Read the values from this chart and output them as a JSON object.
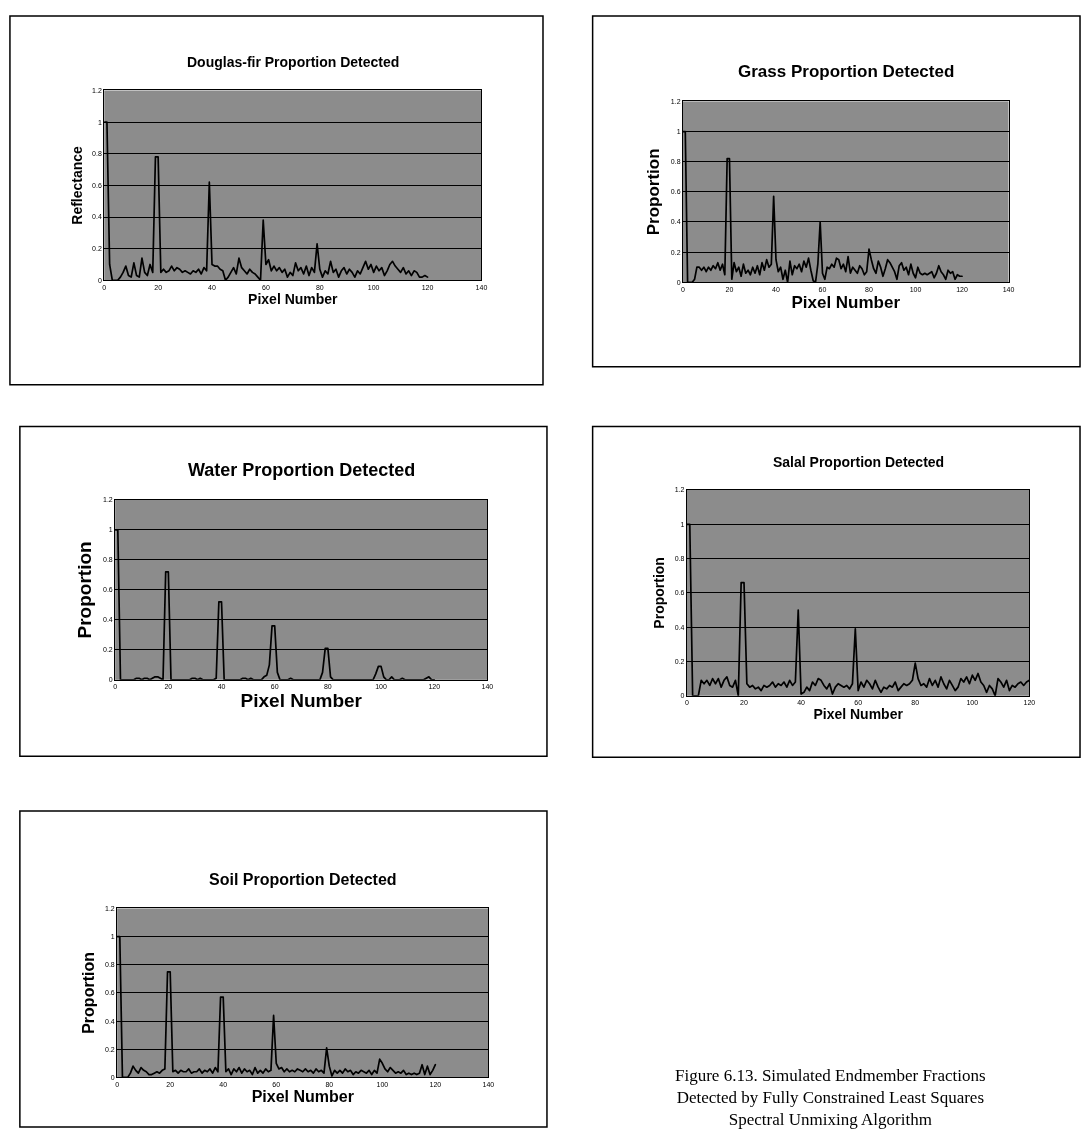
{
  "chart_data": [
    {
      "type": "line",
      "title": "Douglas-fir Proportion Detected",
      "xlabel": "Pixel Number",
      "ylabel": "Reflectance",
      "xlim": [
        0,
        140
      ],
      "xticks": [
        0,
        20,
        40,
        60,
        80,
        100,
        120,
        140
      ],
      "ylim": [
        0,
        1.2
      ],
      "yticks": [
        0,
        0.2,
        0.4,
        0.6,
        0.8,
        1,
        1.2
      ],
      "grid": "y",
      "x": [
        0,
        1,
        2,
        3,
        4,
        5,
        6,
        7,
        8,
        9,
        10,
        11,
        12,
        13,
        14,
        15,
        16,
        17,
        18,
        19,
        20,
        21,
        22,
        23,
        24,
        25,
        26,
        27,
        28,
        29,
        30,
        31,
        32,
        33,
        34,
        35,
        36,
        37,
        38,
        39,
        40,
        41,
        42,
        43,
        44,
        45,
        46,
        47,
        48,
        49,
        50,
        51,
        52,
        53,
        54,
        55,
        56,
        57,
        58,
        59,
        60,
        61,
        62,
        63,
        64,
        65,
        66,
        67,
        68,
        69,
        70,
        71,
        72,
        73,
        74,
        75,
        76,
        77,
        78,
        79,
        80,
        81,
        82,
        83,
        84,
        85,
        86,
        87,
        88,
        89,
        90,
        91,
        92,
        93,
        94,
        95,
        96,
        97,
        98,
        99,
        100,
        101,
        102,
        103,
        104,
        105,
        106,
        107,
        108,
        109,
        110,
        111,
        112,
        113,
        114,
        115,
        116,
        117,
        118,
        119,
        120
      ],
      "series": [
        {
          "color": "#000000",
          "values": [
            1,
            1,
            0.1,
            0,
            0,
            0,
            0.02,
            0.05,
            0.09,
            0.03,
            0.02,
            0.11,
            0.03,
            0.02,
            0.14,
            0.05,
            0.03,
            0.1,
            0.05,
            0.78,
            0.78,
            0.05,
            0.07,
            0.05,
            0.06,
            0.09,
            0.06,
            0.08,
            0.07,
            0.05,
            0.06,
            0.05,
            0.04,
            0.06,
            0.05,
            0.07,
            0.04,
            0.08,
            0.06,
            0.62,
            0.1,
            0.09,
            0.09,
            0.07,
            0.06,
            0,
            0.02,
            0.05,
            0.08,
            0.04,
            0.14,
            0.08,
            0.06,
            0.04,
            0.07,
            0.05,
            0.04,
            0.02,
            0,
            0.38,
            0.1,
            0.13,
            0.06,
            0.09,
            0.06,
            0.08,
            0.05,
            0.07,
            0.02,
            0.05,
            0.03,
            0.11,
            0.06,
            0.08,
            0.04,
            0.09,
            0.03,
            0.08,
            0.05,
            0.23,
            0.07,
            0.02,
            0.06,
            0.04,
            0.12,
            0.05,
            0.07,
            0.02,
            0.06,
            0.08,
            0.04,
            0.07,
            0.05,
            0.02,
            0.06,
            0.04,
            0.08,
            0.12,
            0.07,
            0.1,
            0.05,
            0.09,
            0.06,
            0.08,
            0.03,
            0.06,
            0.1,
            0.12,
            0.09,
            0.07,
            0.05,
            0.08,
            0.04,
            0.06,
            0.03,
            0.06,
            0.05,
            0.02,
            0.02,
            0.03,
            0.02
          ]
        }
      ]
    },
    {
      "type": "line",
      "title": "Grass Proportion Detected",
      "xlabel": "Pixel Number",
      "ylabel": "Proportion",
      "xlim": [
        0,
        140
      ],
      "xticks": [
        0,
        20,
        40,
        60,
        80,
        100,
        120,
        140
      ],
      "ylim": [
        0,
        1.2
      ],
      "yticks": [
        0,
        0.2,
        0.4,
        0.6,
        0.8,
        1,
        1.2
      ],
      "grid": "y",
      "x": [
        0,
        1,
        2,
        3,
        4,
        5,
        6,
        7,
        8,
        9,
        10,
        11,
        12,
        13,
        14,
        15,
        16,
        17,
        18,
        19,
        20,
        21,
        22,
        23,
        24,
        25,
        26,
        27,
        28,
        29,
        30,
        31,
        32,
        33,
        34,
        35,
        36,
        37,
        38,
        39,
        40,
        41,
        42,
        43,
        44,
        45,
        46,
        47,
        48,
        49,
        50,
        51,
        52,
        53,
        54,
        55,
        56,
        57,
        58,
        59,
        60,
        61,
        62,
        63,
        64,
        65,
        66,
        67,
        68,
        69,
        70,
        71,
        72,
        73,
        74,
        75,
        76,
        77,
        78,
        79,
        80,
        81,
        82,
        83,
        84,
        85,
        86,
        87,
        88,
        89,
        90,
        91,
        92,
        93,
        94,
        95,
        96,
        97,
        98,
        99,
        100,
        101,
        102,
        103,
        104,
        105,
        106,
        107,
        108,
        109,
        110,
        111,
        112,
        113,
        114,
        115,
        116,
        117,
        118,
        119,
        120
      ],
      "series": [
        {
          "color": "#000000",
          "values": [
            1,
            1,
            0,
            0,
            0,
            0.02,
            0.1,
            0.1,
            0.08,
            0.1,
            0.07,
            0.1,
            0.08,
            0.11,
            0.09,
            0.13,
            0.08,
            0.12,
            0.05,
            0.82,
            0.82,
            0.02,
            0.13,
            0.07,
            0.1,
            0.04,
            0.12,
            0.06,
            0.08,
            0.05,
            0.1,
            0.06,
            0.11,
            0.05,
            0.13,
            0.08,
            0.15,
            0.1,
            0.12,
            0.57,
            0.15,
            0.07,
            0.1,
            0.02,
            0.08,
            0,
            0.14,
            0.05,
            0.11,
            0.09,
            0.12,
            0.07,
            0.14,
            0.1,
            0.16,
            0.08,
            0.01,
            0,
            0.12,
            0.4,
            0.06,
            0.02,
            0.1,
            0.09,
            0.12,
            0.1,
            0.16,
            0.15,
            0.09,
            0.12,
            0.07,
            0.17,
            0.06,
            0.1,
            0.08,
            0.06,
            0.11,
            0.09,
            0.05,
            0.07,
            0.22,
            0.15,
            0.09,
            0.06,
            0.14,
            0.1,
            0.04,
            0.09,
            0.15,
            0.13,
            0.1,
            0.07,
            0.02,
            0.11,
            0.13,
            0.08,
            0.1,
            0.05,
            0.12,
            0.06,
            0.03,
            0.1,
            0.06,
            0.05,
            0.06,
            0.05,
            0.06,
            0.07,
            0.03,
            0.06,
            0.11,
            0.07,
            0.05,
            0.02,
            0.08,
            0.06,
            0.07,
            0.02,
            0.05,
            0.04,
            0.04
          ]
        }
      ]
    },
    {
      "type": "line",
      "title": "Water Proportion Detected",
      "xlabel": "Pixel Number",
      "ylabel": "Proportion",
      "xlim": [
        0,
        140
      ],
      "xticks": [
        0,
        20,
        40,
        60,
        80,
        100,
        120,
        140
      ],
      "ylim": [
        0,
        1.2
      ],
      "yticks": [
        0,
        0.2,
        0.4,
        0.6,
        0.8,
        1,
        1.2
      ],
      "grid": "y",
      "x": [
        0,
        1,
        2,
        3,
        4,
        5,
        6,
        7,
        8,
        9,
        10,
        11,
        12,
        13,
        14,
        15,
        16,
        17,
        18,
        19,
        20,
        21,
        22,
        23,
        24,
        25,
        26,
        27,
        28,
        29,
        30,
        31,
        32,
        33,
        34,
        35,
        36,
        37,
        38,
        39,
        40,
        41,
        42,
        43,
        44,
        45,
        46,
        47,
        48,
        49,
        50,
        51,
        52,
        53,
        54,
        55,
        56,
        57,
        58,
        59,
        60,
        61,
        62,
        63,
        64,
        65,
        66,
        67,
        68,
        69,
        70,
        71,
        72,
        73,
        74,
        75,
        76,
        77,
        78,
        79,
        80,
        81,
        82,
        83,
        84,
        85,
        86,
        87,
        88,
        89,
        90,
        91,
        92,
        93,
        94,
        95,
        96,
        97,
        98,
        99,
        100,
        101,
        102,
        103,
        104,
        105,
        106,
        107,
        108,
        109,
        110,
        111,
        112,
        113,
        114,
        115,
        116,
        117,
        118,
        119,
        120
      ],
      "series": [
        {
          "color": "#000000",
          "values": [
            1,
            1,
            0,
            0,
            0,
            0,
            0,
            0,
            0.01,
            0.01,
            0,
            0.01,
            0.01,
            0,
            0.01,
            0.02,
            0.02,
            0.01,
            0,
            0.72,
            0.72,
            0,
            0,
            0,
            0,
            0,
            0,
            0,
            0,
            0.01,
            0.01,
            0,
            0.01,
            0,
            0,
            0,
            0,
            0,
            0.01,
            0.52,
            0.52,
            0,
            0,
            0,
            0,
            0,
            0,
            0,
            0.01,
            0.01,
            0,
            0.01,
            0,
            0,
            0,
            0,
            0.02,
            0.03,
            0.1,
            0.36,
            0.36,
            0.05,
            0,
            0,
            0,
            0,
            0.01,
            0,
            0,
            0,
            0,
            0,
            0,
            0,
            0,
            0,
            0,
            0,
            0.05,
            0.21,
            0.21,
            0.02,
            0,
            0,
            0,
            0,
            0,
            0,
            0,
            0,
            0,
            0,
            0,
            0,
            0,
            0,
            0,
            0,
            0.04,
            0.09,
            0.09,
            0.02,
            0,
            0,
            0.02,
            0,
            0,
            0,
            0.01,
            0,
            0,
            0,
            0,
            0,
            0,
            0,
            0,
            0.01,
            0.02,
            0,
            0
          ]
        }
      ]
    },
    {
      "type": "line",
      "title": "Salal Proportion Detected",
      "xlabel": "Pixel Number",
      "ylabel": "Proportion",
      "xlim": [
        0,
        120
      ],
      "xticks": [
        0,
        20,
        40,
        60,
        80,
        100,
        120
      ],
      "ylim": [
        0,
        1.2
      ],
      "yticks": [
        0,
        0.2,
        0.4,
        0.6,
        0.8,
        1,
        1.2
      ],
      "grid": "y",
      "x": [
        0,
        1,
        2,
        3,
        4,
        5,
        6,
        7,
        8,
        9,
        10,
        11,
        12,
        13,
        14,
        15,
        16,
        17,
        18,
        19,
        20,
        21,
        22,
        23,
        24,
        25,
        26,
        27,
        28,
        29,
        30,
        31,
        32,
        33,
        34,
        35,
        36,
        37,
        38,
        39,
        40,
        41,
        42,
        43,
        44,
        45,
        46,
        47,
        48,
        49,
        50,
        51,
        52,
        53,
        54,
        55,
        56,
        57,
        58,
        59,
        60,
        61,
        62,
        63,
        64,
        65,
        66,
        67,
        68,
        69,
        70,
        71,
        72,
        73,
        74,
        75,
        76,
        77,
        78,
        79,
        80,
        81,
        82,
        83,
        84,
        85,
        86,
        87,
        88,
        89,
        90,
        91,
        92,
        93,
        94,
        95,
        96,
        97,
        98,
        99,
        100,
        101,
        102,
        103,
        104,
        105,
        106,
        107,
        108,
        109,
        110,
        111,
        112,
        113,
        114,
        115,
        116,
        117,
        118,
        119,
        120
      ],
      "series": [
        {
          "color": "#000000",
          "values": [
            1,
            1,
            0,
            0,
            0,
            0.09,
            0.07,
            0.09,
            0.06,
            0.1,
            0.07,
            0.1,
            0.05,
            0.09,
            0.11,
            0.06,
            0.05,
            0.09,
            0,
            0.66,
            0.66,
            0.07,
            0.05,
            0.06,
            0.04,
            0.05,
            0.03,
            0.06,
            0.05,
            0.06,
            0.08,
            0.05,
            0.07,
            0.06,
            0.08,
            0.05,
            0.09,
            0.06,
            0.08,
            0.5,
            0.01,
            0.02,
            0.05,
            0.03,
            0.08,
            0.06,
            0.1,
            0.09,
            0.06,
            0.04,
            0.07,
            0.01,
            0.05,
            0.07,
            0.06,
            0.05,
            0.06,
            0.04,
            0.07,
            0.39,
            0.03,
            0.08,
            0.05,
            0.09,
            0.07,
            0.04,
            0.09,
            0.05,
            0.02,
            0.05,
            0.04,
            0.06,
            0.05,
            0.08,
            0.03,
            0.05,
            0.07,
            0.06,
            0.07,
            0.09,
            0.19,
            0.1,
            0.06,
            0.07,
            0.05,
            0.1,
            0.06,
            0.09,
            0.05,
            0.11,
            0.07,
            0.04,
            0.09,
            0.06,
            0.03,
            0.05,
            0.1,
            0.08,
            0.11,
            0.07,
            0.12,
            0.09,
            0.13,
            0.08,
            0.06,
            0.02,
            0.06,
            0.04,
            0,
            0.1,
            0.08,
            0.05,
            0.09,
            0.03,
            0.06,
            0.05,
            0.07,
            0.08,
            0.06,
            0.08,
            0.09
          ]
        }
      ]
    },
    {
      "type": "line",
      "title": "Soil Proportion Detected",
      "xlabel": "Pixel Number",
      "ylabel": "Proportion",
      "xlim": [
        0,
        140
      ],
      "xticks": [
        0,
        20,
        40,
        60,
        80,
        100,
        120,
        140
      ],
      "ylim": [
        0,
        1.2
      ],
      "yticks": [
        0,
        0.2,
        0.4,
        0.6,
        0.8,
        1,
        1.2
      ],
      "grid": "y",
      "annotations": [
        "Figure 6.13. Simulated Endmember Fractions Detected by Fully Constrained Least Squares Spectral Unmixing Algorithm"
      ],
      "x": [
        0,
        1,
        2,
        3,
        4,
        5,
        6,
        7,
        8,
        9,
        10,
        11,
        12,
        13,
        14,
        15,
        16,
        17,
        18,
        19,
        20,
        21,
        22,
        23,
        24,
        25,
        26,
        27,
        28,
        29,
        30,
        31,
        32,
        33,
        34,
        35,
        36,
        37,
        38,
        39,
        40,
        41,
        42,
        43,
        44,
        45,
        46,
        47,
        48,
        49,
        50,
        51,
        52,
        53,
        54,
        55,
        56,
        57,
        58,
        59,
        60,
        61,
        62,
        63,
        64,
        65,
        66,
        67,
        68,
        69,
        70,
        71,
        72,
        73,
        74,
        75,
        76,
        77,
        78,
        79,
        80,
        81,
        82,
        83,
        84,
        85,
        86,
        87,
        88,
        89,
        90,
        91,
        92,
        93,
        94,
        95,
        96,
        97,
        98,
        99,
        100,
        101,
        102,
        103,
        104,
        105,
        106,
        107,
        108,
        109,
        110,
        111,
        112,
        113,
        114,
        115,
        116,
        117,
        118,
        119,
        120
      ],
      "series": [
        {
          "color": "#000000",
          "values": [
            1,
            1,
            0,
            0,
            0,
            0.03,
            0.08,
            0.05,
            0.03,
            0.07,
            0.05,
            0.04,
            0.02,
            0.02,
            0.03,
            0.04,
            0.03,
            0.05,
            0.06,
            0.75,
            0.75,
            0.04,
            0.05,
            0.03,
            0.05,
            0.04,
            0.04,
            0.06,
            0.03,
            0.04,
            0.04,
            0.06,
            0.03,
            0.05,
            0.04,
            0.06,
            0.03,
            0.07,
            0.04,
            0.57,
            0.57,
            0.04,
            0.06,
            0.02,
            0.06,
            0.04,
            0.07,
            0.03,
            0.06,
            0.04,
            0.05,
            0.02,
            0.07,
            0.03,
            0.05,
            0.03,
            0.06,
            0.04,
            0.05,
            0.44,
            0.1,
            0.06,
            0.07,
            0.04,
            0.06,
            0.04,
            0.05,
            0.04,
            0.06,
            0.05,
            0.04,
            0.06,
            0.04,
            0.05,
            0.03,
            0.06,
            0.04,
            0.05,
            0.03,
            0.21,
            0.08,
            0.01,
            0.05,
            0.03,
            0.05,
            0.03,
            0.06,
            0.04,
            0.05,
            0.02,
            0.04,
            0.03,
            0.05,
            0.04,
            0.03,
            0.05,
            0.02,
            0.05,
            0.03,
            0.13,
            0.1,
            0.06,
            0.04,
            0.07,
            0.05,
            0.03,
            0.04,
            0.03,
            0.05,
            0.02,
            0.03,
            0.02,
            0.03,
            0.02,
            0.03,
            0.09,
            0.02,
            0.08,
            0.02,
            0.05,
            0.09
          ]
        }
      ]
    }
  ]
}
